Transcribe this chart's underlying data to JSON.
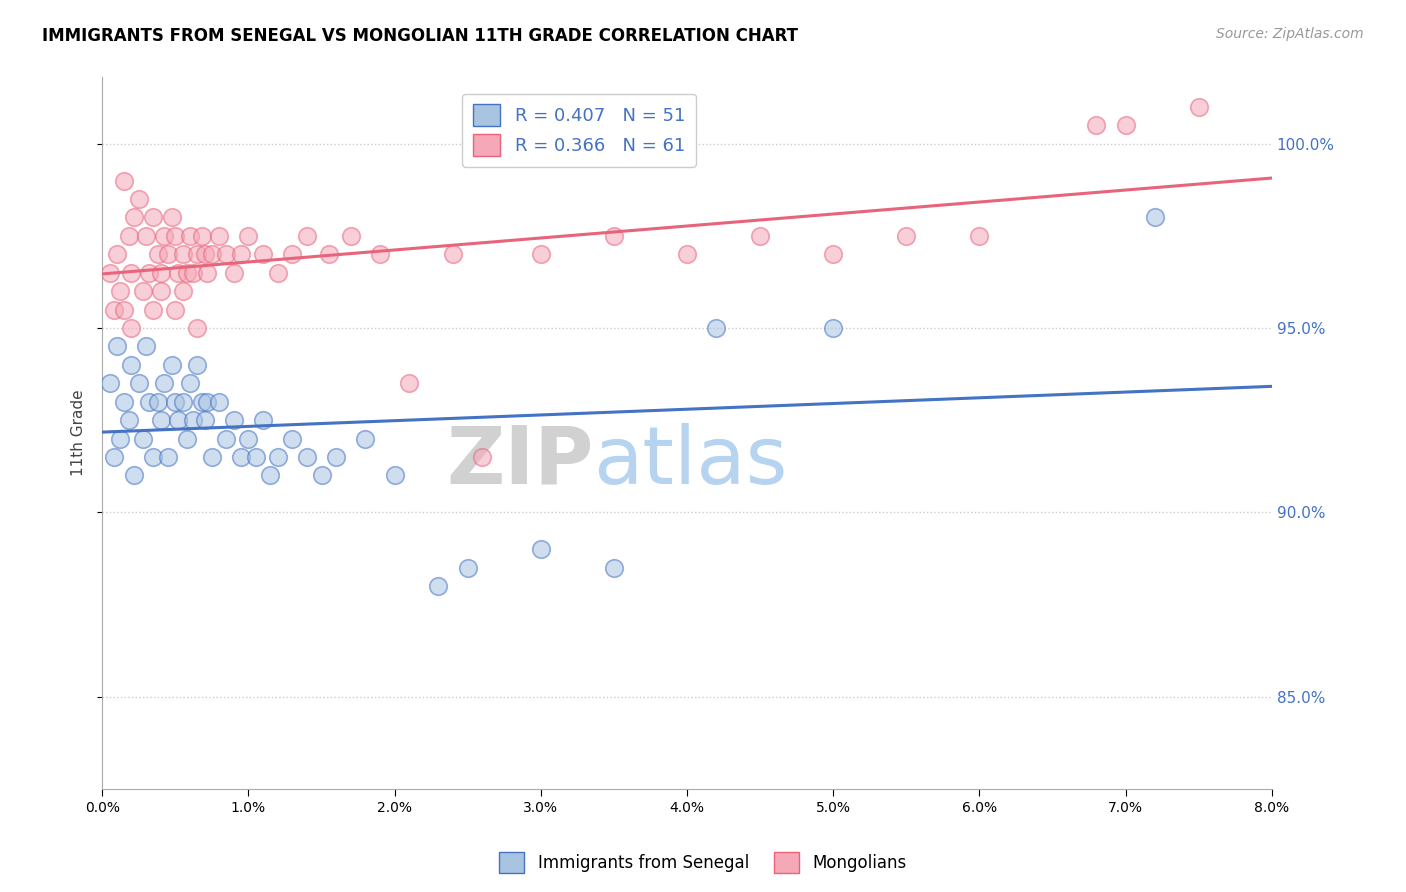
{
  "title": "IMMIGRANTS FROM SENEGAL VS MONGOLIAN 11TH GRADE CORRELATION CHART",
  "source": "Source: ZipAtlas.com",
  "ylabel": "11th Grade",
  "xmin": 0.0,
  "xmax": 8.0,
  "ymin": 82.5,
  "ymax": 101.8,
  "yticks": [
    85.0,
    90.0,
    95.0,
    100.0
  ],
  "legend_r1": "R = 0.407",
  "legend_n1": "N = 51",
  "legend_r2": "R = 0.366",
  "legend_n2": "N = 61",
  "blue_color": "#A8C4E0",
  "pink_color": "#F4A8B8",
  "blue_line_color": "#4472C4",
  "pink_line_color": "#E8647A",
  "watermark_zip": "ZIP",
  "watermark_atlas": "atlas",
  "senegal_x": [
    0.05,
    0.08,
    0.1,
    0.12,
    0.15,
    0.18,
    0.2,
    0.22,
    0.25,
    0.28,
    0.3,
    0.32,
    0.35,
    0.38,
    0.4,
    0.42,
    0.45,
    0.48,
    0.5,
    0.52,
    0.55,
    0.58,
    0.6,
    0.62,
    0.65,
    0.68,
    0.7,
    0.72,
    0.75,
    0.8,
    0.85,
    0.9,
    0.95,
    1.0,
    1.05,
    1.1,
    1.15,
    1.2,
    1.3,
    1.4,
    1.5,
    1.6,
    1.8,
    2.0,
    2.3,
    2.5,
    3.0,
    3.5,
    4.2,
    5.0,
    7.2
  ],
  "senegal_y": [
    93.5,
    91.5,
    94.5,
    92.0,
    93.0,
    92.5,
    94.0,
    91.0,
    93.5,
    92.0,
    94.5,
    93.0,
    91.5,
    93.0,
    92.5,
    93.5,
    91.5,
    94.0,
    93.0,
    92.5,
    93.0,
    92.0,
    93.5,
    92.5,
    94.0,
    93.0,
    92.5,
    93.0,
    91.5,
    93.0,
    92.0,
    92.5,
    91.5,
    92.0,
    91.5,
    92.5,
    91.0,
    91.5,
    92.0,
    91.5,
    91.0,
    91.5,
    92.0,
    91.0,
    88.0,
    88.5,
    89.0,
    88.5,
    95.0,
    95.0,
    98.0
  ],
  "mongolia_x": [
    0.05,
    0.08,
    0.1,
    0.12,
    0.15,
    0.18,
    0.2,
    0.22,
    0.25,
    0.28,
    0.3,
    0.32,
    0.35,
    0.38,
    0.4,
    0.42,
    0.45,
    0.48,
    0.5,
    0.52,
    0.55,
    0.58,
    0.6,
    0.62,
    0.65,
    0.68,
    0.7,
    0.72,
    0.75,
    0.8,
    0.85,
    0.9,
    0.95,
    1.0,
    1.1,
    1.2,
    1.3,
    1.4,
    1.55,
    1.7,
    1.9,
    2.1,
    2.4,
    2.6,
    3.0,
    3.5,
    4.0,
    4.5,
    5.0,
    5.5,
    6.0,
    6.8,
    7.0,
    7.5,
    0.15,
    0.2,
    0.35,
    0.4,
    0.5,
    0.55,
    0.65
  ],
  "mongolia_y": [
    96.5,
    95.5,
    97.0,
    96.0,
    99.0,
    97.5,
    96.5,
    98.0,
    98.5,
    96.0,
    97.5,
    96.5,
    98.0,
    97.0,
    96.5,
    97.5,
    97.0,
    98.0,
    97.5,
    96.5,
    97.0,
    96.5,
    97.5,
    96.5,
    97.0,
    97.5,
    97.0,
    96.5,
    97.0,
    97.5,
    97.0,
    96.5,
    97.0,
    97.5,
    97.0,
    96.5,
    97.0,
    97.5,
    97.0,
    97.5,
    97.0,
    93.5,
    97.0,
    91.5,
    97.0,
    97.5,
    97.0,
    97.5,
    97.0,
    97.5,
    97.5,
    100.5,
    100.5,
    101.0,
    95.5,
    95.0,
    95.5,
    96.0,
    95.5,
    96.0,
    95.0
  ]
}
